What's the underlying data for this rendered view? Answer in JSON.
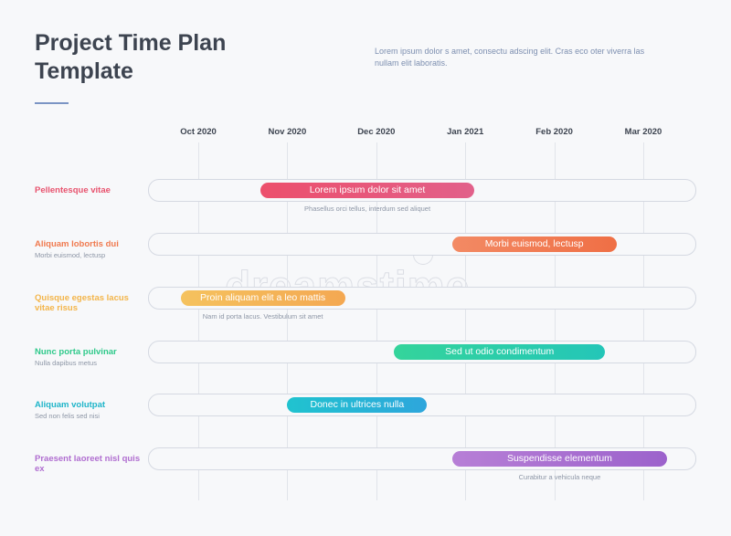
{
  "title": {
    "line1": "Project Time Plan",
    "line2": "Template"
  },
  "intro": "Lorem ipsum dolor s amet, consectu adscing elit. Cras eco oter viverra las nullam elit laboratis.",
  "watermark": "dreamstime",
  "chart_data": {
    "type": "gantt",
    "x": [
      "Oct 2020",
      "Nov 2020",
      "Dec 2020",
      "Jan 2021",
      "Feb 2020",
      "Mar 2020"
    ],
    "rows": [
      {
        "label": "Pellentesque vitae",
        "sublabel": "",
        "color": "#e8536e",
        "bar_text": "Lorem ipsum dolor sit amet",
        "bar_note": "Phasellus orci tellus, interdum sed aliquet",
        "start": 0.7,
        "end": 3.1,
        "colors": [
          "#ec4f6c",
          "#e2608a"
        ]
      },
      {
        "label": "Aliquam lobortis dui",
        "sublabel": "Morbi euismod, lectusp",
        "color": "#f07a4f",
        "bar_text": "Morbi euismod, lectusp",
        "bar_note": "",
        "start": 2.85,
        "end": 4.7,
        "colors": [
          "#f38a64",
          "#ef6f45"
        ]
      },
      {
        "label": "Quisque egestas lacus vitae risus",
        "sublabel": "",
        "color": "#f3b54a",
        "bar_text": "Proin aliquam elit a leo mattis",
        "bar_note": "Nam id porta lacus. Vestibulum sit amet",
        "start": -0.2,
        "end": 1.65,
        "colors": [
          "#f5c25e",
          "#f4a852"
        ]
      },
      {
        "label": "Nunc porta pulvinar",
        "sublabel": "Nulla dapibus metus",
        "color": "#2ec98a",
        "bar_text": "Sed ut odio condimentum",
        "bar_note": "",
        "start": 2.2,
        "end": 4.57,
        "colors": [
          "#34d49b",
          "#24c6b8"
        ]
      },
      {
        "label": "Aliquam volutpat",
        "sublabel": "Sed non felis sed nisi",
        "color": "#1fb5c9",
        "bar_text": "Donec in ultrices nulla",
        "bar_note": "",
        "start": 1.0,
        "end": 2.57,
        "colors": [
          "#20c3cf",
          "#2ea6dc"
        ]
      },
      {
        "label": "Praesent laoreet nisl quis ex",
        "sublabel": "",
        "color": "#b06ed0",
        "bar_text": "Suspendisse elementum",
        "bar_note": "Curabitur a vehicula neque",
        "start": 2.85,
        "end": 5.27,
        "colors": [
          "#b77fd6",
          "#9c62cc"
        ]
      }
    ]
  }
}
